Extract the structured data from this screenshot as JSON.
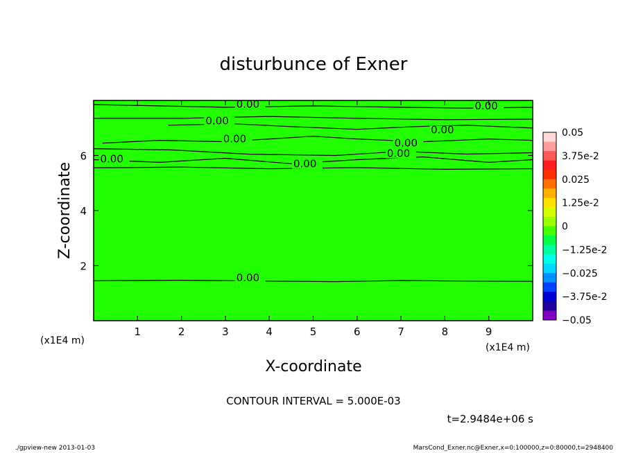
{
  "chart_data": {
    "type": "contour",
    "title": "disturbunce of Exner",
    "xlabel": "X-coordinate",
    "ylabel": "Z-coordinate",
    "x_unit": "(x1E4 m)",
    "y_unit": "(x1E4 m)",
    "xlim": [
      0,
      10
    ],
    "ylim": [
      0,
      8
    ],
    "xticks": [
      1,
      2,
      3,
      4,
      5,
      6,
      7,
      8,
      9
    ],
    "yticks": [
      2,
      4,
      6
    ],
    "field_value": 0,
    "field_color": "#22ff00",
    "contour_interval_text": "CONTOUR INTERVAL = 5.000E-03",
    "time_text": "t=2.9484e+06 s",
    "contour_labels": [
      {
        "x": 3.25,
        "y": 7.78,
        "text": "0.00"
      },
      {
        "x": 2.55,
        "y": 7.18,
        "text": "0.00"
      },
      {
        "x": 2.95,
        "y": 6.53,
        "text": "0.00"
      },
      {
        "x": 0.15,
        "y": 5.8,
        "text": "0.00"
      },
      {
        "x": 4.55,
        "y": 5.62,
        "text": "0.00"
      },
      {
        "x": 6.68,
        "y": 6.0,
        "text": "0.00"
      },
      {
        "x": 6.85,
        "y": 6.38,
        "text": "0.00"
      },
      {
        "x": 7.68,
        "y": 6.85,
        "text": "0.00"
      },
      {
        "x": 8.68,
        "y": 7.72,
        "text": "0.00"
      },
      {
        "x": 3.25,
        "y": 1.48,
        "text": "0.00"
      }
    ],
    "contour_lines": [
      [
        [
          0,
          7.85
        ],
        [
          1.5,
          7.8
        ],
        [
          3.0,
          7.75
        ],
        [
          5.0,
          7.8
        ],
        [
          7.0,
          7.75
        ],
        [
          8.5,
          7.72
        ],
        [
          10,
          7.75
        ]
      ],
      [
        [
          0,
          7.35
        ],
        [
          2.0,
          7.35
        ],
        [
          4.0,
          7.42
        ],
        [
          6.0,
          7.35
        ],
        [
          8.0,
          7.3
        ],
        [
          10,
          7.32
        ]
      ],
      [
        [
          1.7,
          7.1
        ],
        [
          3.2,
          7.15
        ],
        [
          4.5,
          7.05
        ],
        [
          6.0,
          6.95
        ],
        [
          7.3,
          7.05
        ],
        [
          8.5,
          7.1
        ],
        [
          10,
          7.0
        ]
      ],
      [
        [
          0.2,
          6.45
        ],
        [
          1.5,
          6.55
        ],
        [
          3.0,
          6.5
        ],
        [
          5.0,
          6.7
        ],
        [
          6.0,
          6.6
        ],
        [
          7.5,
          6.5
        ],
        [
          9.0,
          6.6
        ],
        [
          10,
          6.55
        ]
      ],
      [
        [
          0,
          6.25
        ],
        [
          1.8,
          6.2
        ],
        [
          3.5,
          6.05
        ],
        [
          5.5,
          6.0
        ],
        [
          7.0,
          6.15
        ],
        [
          8.5,
          6.05
        ],
        [
          10,
          6.1
        ]
      ],
      [
        [
          0,
          5.85
        ],
        [
          1.5,
          5.75
        ],
        [
          3.0,
          5.9
        ],
        [
          4.5,
          5.7
        ],
        [
          6.0,
          5.85
        ],
        [
          7.5,
          5.95
        ],
        [
          9.0,
          5.75
        ],
        [
          10,
          5.85
        ]
      ],
      [
        [
          0,
          5.55
        ],
        [
          2.0,
          5.58
        ],
        [
          4.0,
          5.52
        ],
        [
          6.0,
          5.56
        ],
        [
          8.0,
          5.5
        ],
        [
          10,
          5.52
        ]
      ],
      [
        [
          0,
          1.45
        ],
        [
          2.0,
          1.47
        ],
        [
          4.0,
          1.44
        ],
        [
          5.5,
          1.42
        ],
        [
          7.0,
          1.46
        ],
        [
          8.5,
          1.44
        ],
        [
          10,
          1.43
        ]
      ]
    ],
    "colorbar": {
      "labels": [
        "0.05",
        "3.75e-2",
        "0.025",
        "1.25e-2",
        "0",
        "−1.25e-2",
        "−0.025",
        "−3.75e-2",
        "−0.05"
      ],
      "colors": [
        "#ffd8d8",
        "#ff9c9c",
        "#ff5a5a",
        "#ff1e1e",
        "#ff3000",
        "#ff7000",
        "#ffb000",
        "#ffe000",
        "#d8ff00",
        "#9cff00",
        "#44ff00",
        "#00ff44",
        "#00ffa0",
        "#00ffe8",
        "#00d8ff",
        "#0090ff",
        "#0040ff",
        "#0000d0",
        "#20009c",
        "#8000c0"
      ]
    },
    "grid": false,
    "legend": "colorbar right"
  },
  "footer": {
    "left": "./gpview-new   2013-01-03",
    "right": "MarsCond_Exner.nc@Exner,x=0:100000,z=0:80000,t=2948400"
  }
}
